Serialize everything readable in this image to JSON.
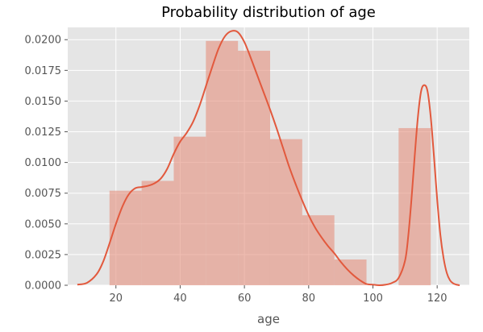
{
  "chart_data": {
    "type": "bar",
    "title": "Probability distribution of age",
    "xlabel": "age",
    "ylabel": "",
    "xlim": [
      5,
      130
    ],
    "ylim": [
      0,
      0.021
    ],
    "xticks": [
      20,
      40,
      60,
      80,
      100,
      120
    ],
    "yticks": [
      0.0,
      0.0025,
      0.005,
      0.0075,
      0.01,
      0.0125,
      0.015,
      0.0175,
      0.02
    ],
    "ytick_labels": [
      "0.0000",
      "0.0025",
      "0.0050",
      "0.0075",
      "0.0100",
      "0.0125",
      "0.0150",
      "0.0175",
      "0.0200"
    ],
    "grid": true,
    "histogram": {
      "bin_edges": [
        18,
        28,
        38,
        48,
        58,
        68,
        78,
        88,
        98,
        108,
        118
      ],
      "values": [
        0.0077,
        0.0085,
        0.0121,
        0.0199,
        0.0191,
        0.0119,
        0.0057,
        0.0021,
        0.0,
        0.0128
      ],
      "color": "#e58f7d"
    },
    "density_curve": {
      "color": "#e2593d",
      "x": [
        8,
        11,
        14,
        16,
        18,
        20,
        22,
        24,
        26,
        28,
        30,
        32,
        34,
        36,
        38,
        40,
        42,
        44,
        46,
        48,
        50,
        52,
        54,
        56,
        58,
        60,
        62,
        64,
        66,
        68,
        70,
        72,
        74,
        76,
        78,
        80,
        82,
        84,
        86,
        88,
        90,
        92,
        94,
        96,
        98,
        100,
        102,
        104,
        106,
        108,
        110,
        111,
        112,
        113,
        114,
        115,
        116,
        117,
        118,
        119,
        120,
        121,
        122,
        123,
        124,
        125,
        126,
        127
      ],
      "y": [
        5e-05,
        0.0002,
        0.0009,
        0.0019,
        0.0034,
        0.005,
        0.0064,
        0.0074,
        0.0079,
        0.008,
        0.0081,
        0.0083,
        0.0087,
        0.0095,
        0.0107,
        0.0117,
        0.0124,
        0.0133,
        0.0146,
        0.0162,
        0.0178,
        0.0193,
        0.0203,
        0.0207,
        0.0206,
        0.0198,
        0.0185,
        0.0171,
        0.0157,
        0.0143,
        0.0128,
        0.0112,
        0.0096,
        0.0082,
        0.0069,
        0.0057,
        0.0047,
        0.0039,
        0.0032,
        0.0026,
        0.0019,
        0.0013,
        0.0008,
        0.0004,
        0.0001,
        5e-05,
        0.0,
        5e-05,
        0.0002,
        0.0006,
        0.002,
        0.004,
        0.007,
        0.0105,
        0.0137,
        0.0158,
        0.0163,
        0.0158,
        0.0137,
        0.0105,
        0.007,
        0.0041,
        0.0022,
        0.001,
        0.0004,
        0.00015,
        5e-05,
        0.0
      ]
    }
  }
}
